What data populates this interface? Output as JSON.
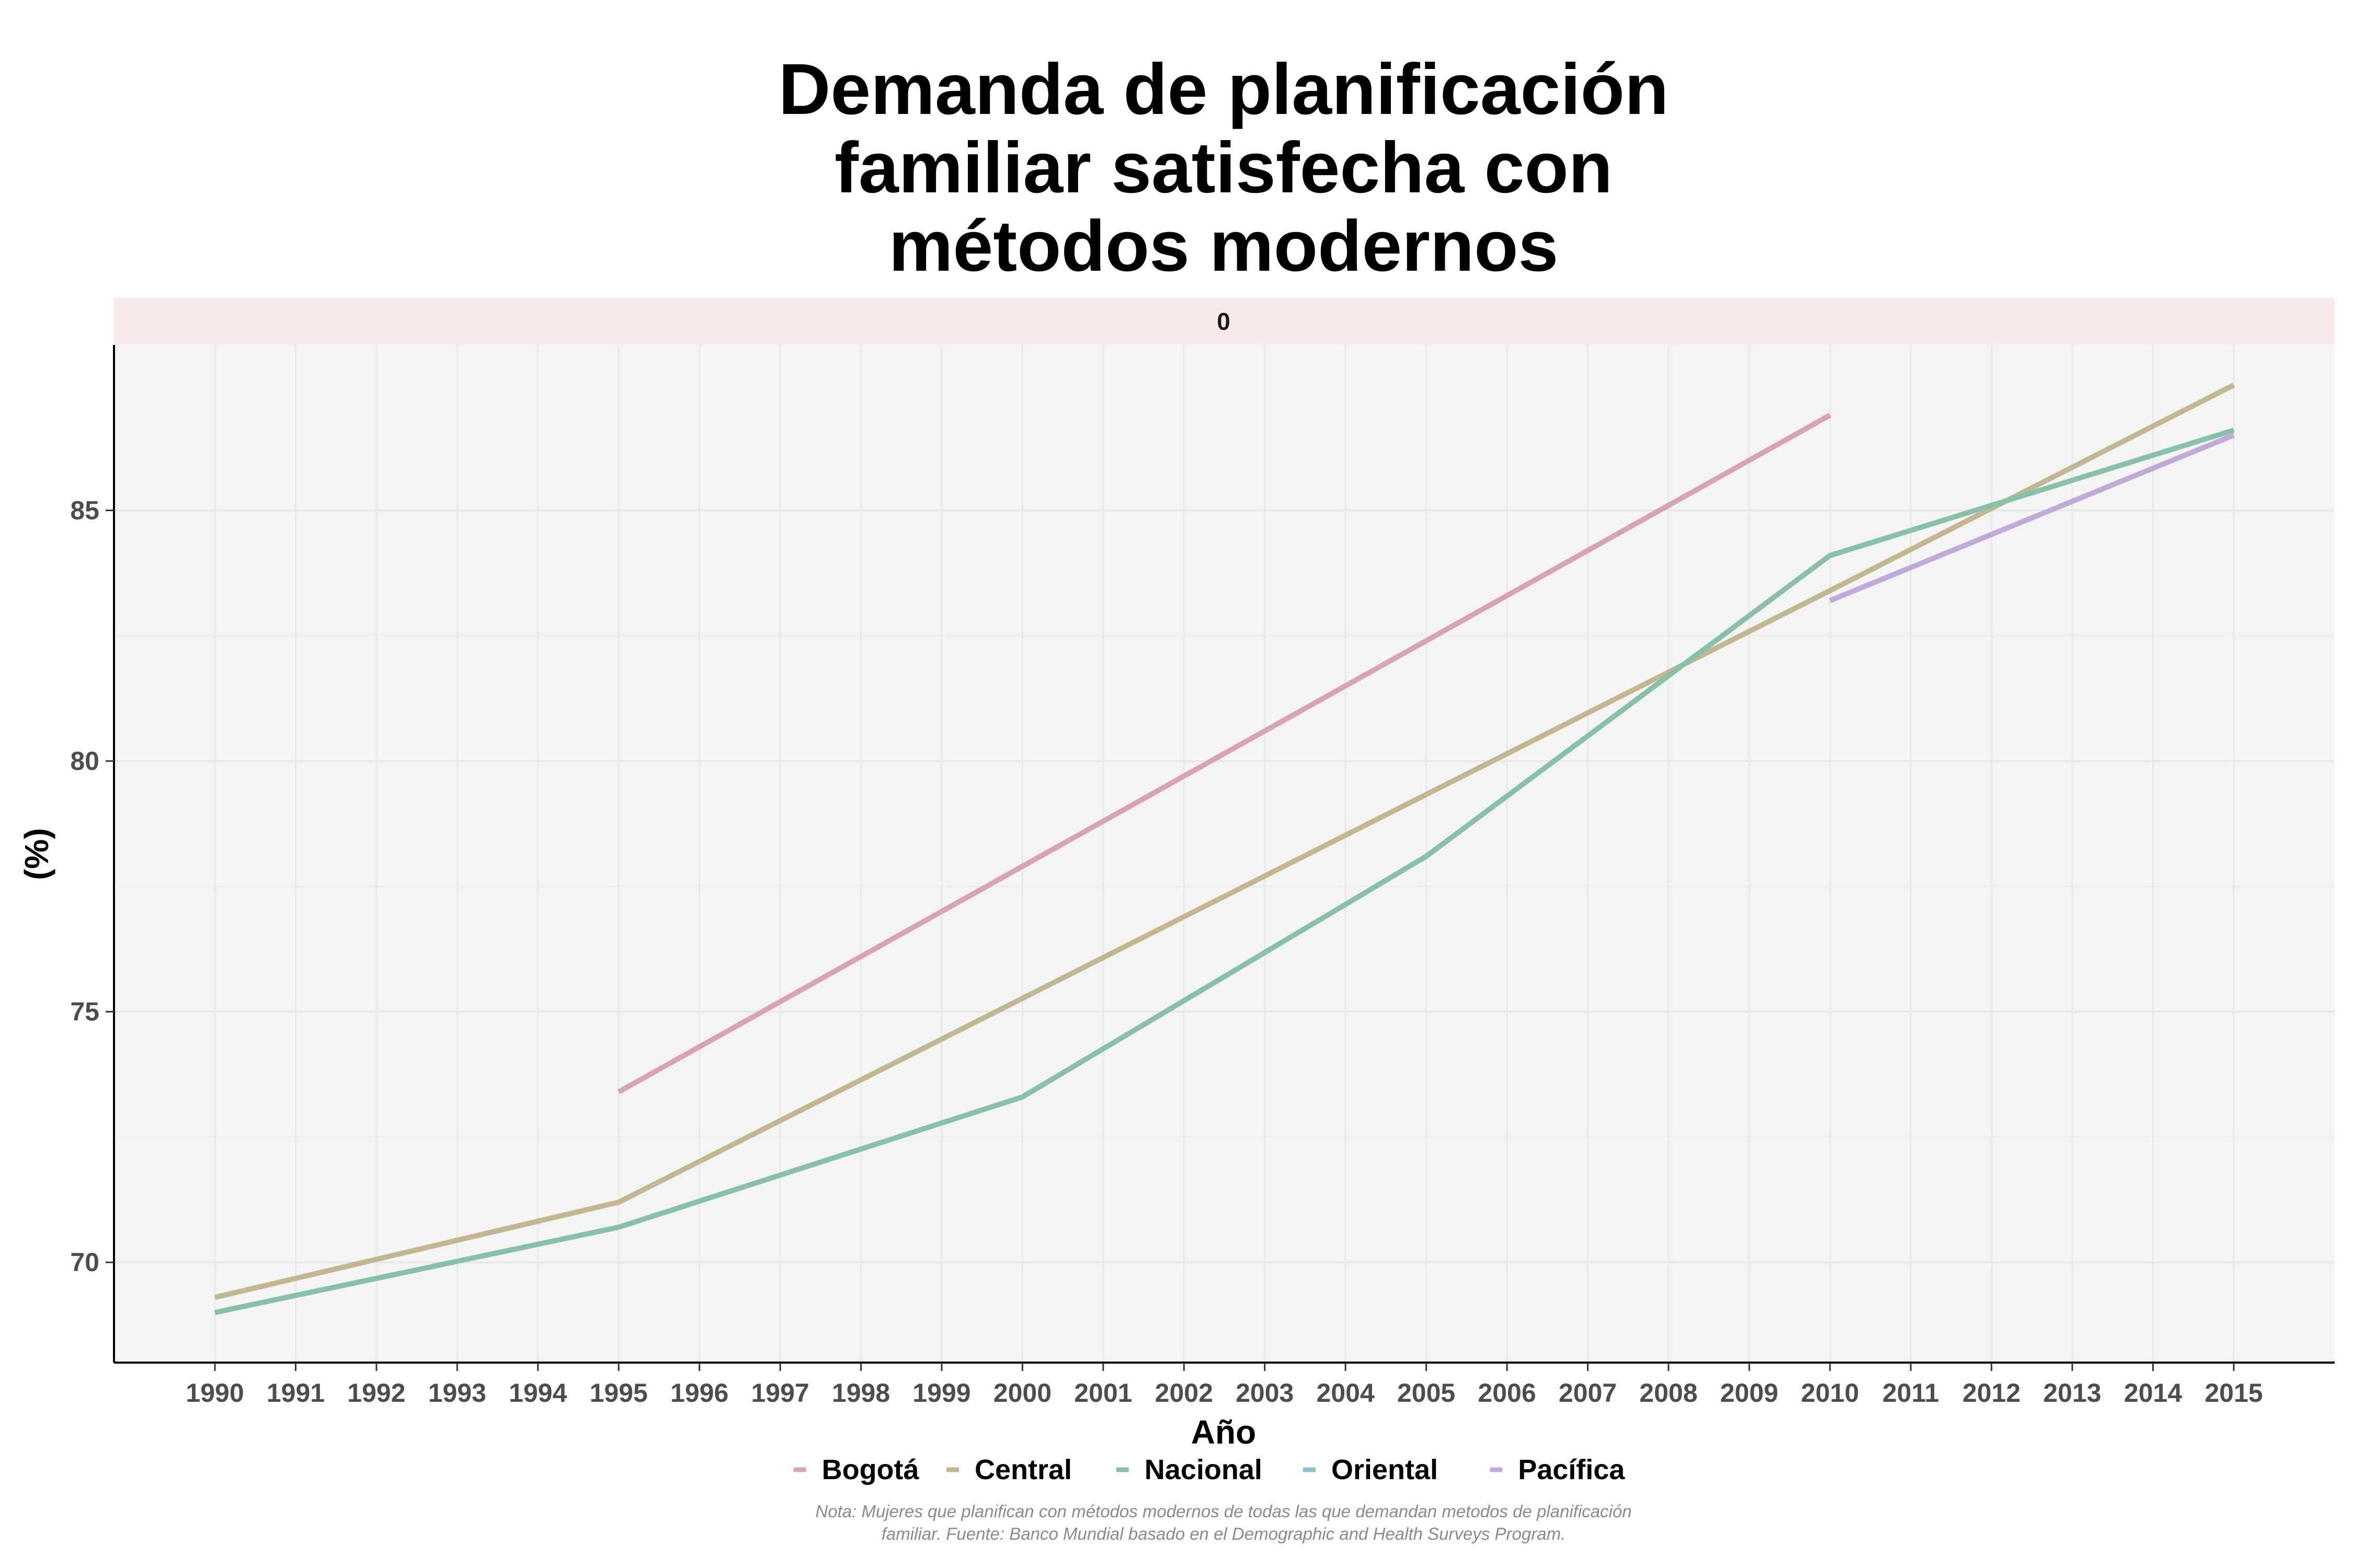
{
  "chart_data": {
    "type": "line",
    "title_lines": [
      "Demanda de planificación",
      "familiar satisfecha con",
      "métodos modernos"
    ],
    "facet_label": "0",
    "xlabel": "Año",
    "ylabel": "(%)",
    "x_ticks": [
      "1990",
      "1991",
      "1992",
      "1993",
      "1994",
      "1995",
      "1996",
      "1997",
      "1998",
      "1999",
      "2000",
      "2001",
      "2002",
      "2003",
      "2004",
      "2005",
      "2006",
      "2007",
      "2008",
      "2009",
      "2010",
      "2011",
      "2012",
      "2013",
      "2014",
      "2015"
    ],
    "y_ticks": [
      70,
      75,
      80,
      85
    ],
    "xlim": [
      1988.75,
      2016.25
    ],
    "ylim": [
      68.0,
      88.3
    ],
    "grid": true,
    "legend_position": "bottom",
    "series": [
      {
        "name": "Bogotá",
        "color": "#d8a4b4",
        "points": [
          [
            1995,
            73.4
          ],
          [
            2010,
            86.9
          ]
        ]
      },
      {
        "name": "Central",
        "color": "#c2b78e",
        "points": [
          [
            1990,
            69.3
          ],
          [
            1995,
            71.2
          ],
          [
            2010,
            83.4
          ],
          [
            2015,
            87.5
          ]
        ]
      },
      {
        "name": "Nacional",
        "color": "#87c1a7",
        "points": [
          [
            1990,
            69.0
          ],
          [
            1995,
            70.7
          ],
          [
            2000,
            73.3
          ],
          [
            2005,
            78.1
          ],
          [
            2010,
            84.1
          ],
          [
            2015,
            86.6
          ]
        ]
      },
      {
        "name": "Oriental",
        "color": "#8cc0cf",
        "points": []
      },
      {
        "name": "Pacífica",
        "color": "#c1aad9",
        "points": [
          [
            2010,
            83.2
          ],
          [
            2015,
            86.5
          ]
        ]
      }
    ],
    "caption_lines": [
      "Nota: Mujeres que planifican con métodos modernos de todas las que demandan metodos de planificación",
      "familiar. Fuente: Banco Mundial basado en el Demographic and Health Surveys Program."
    ]
  }
}
